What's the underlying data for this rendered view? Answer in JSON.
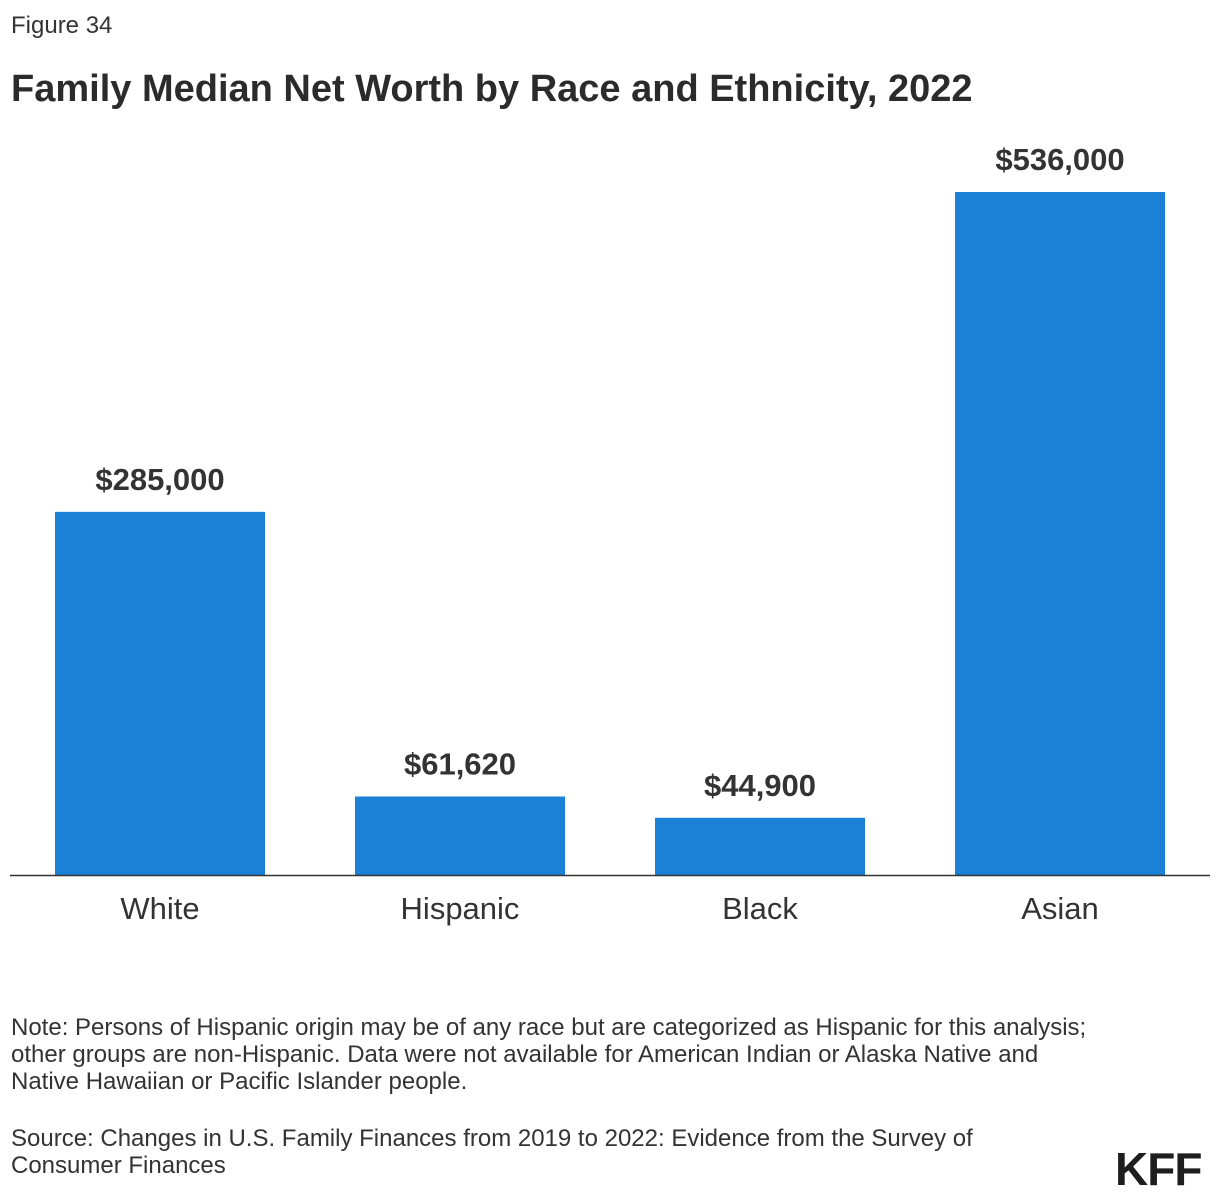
{
  "figure_label": "Figure 34",
  "chart_data": {
    "type": "bar",
    "title": "Family Median Net Worth by Race and Ethnicity, 2022",
    "categories": [
      "White",
      "Hispanic",
      "Black",
      "Asian"
    ],
    "values": [
      285000,
      61620,
      44900,
      536000
    ],
    "data_labels": [
      "$285,000",
      "$61,620",
      "$44,900",
      "$536,000"
    ],
    "xlabel": "",
    "ylabel": "",
    "ylim": [
      0,
      536000
    ],
    "grid": false,
    "bar_color": "#1b81d6"
  },
  "note": "Note: Persons of Hispanic origin may be of any race but are categorized as Hispanic for this analysis; other groups are non-Hispanic. Data were not available for American Indian or Alaska Native and Native Hawaiian or Pacific Islander people.",
  "source": "Source: Changes in U.S. Family Finances from 2019 to 2022: Evidence from the Survey of Consumer Finances",
  "logo": "KFF"
}
